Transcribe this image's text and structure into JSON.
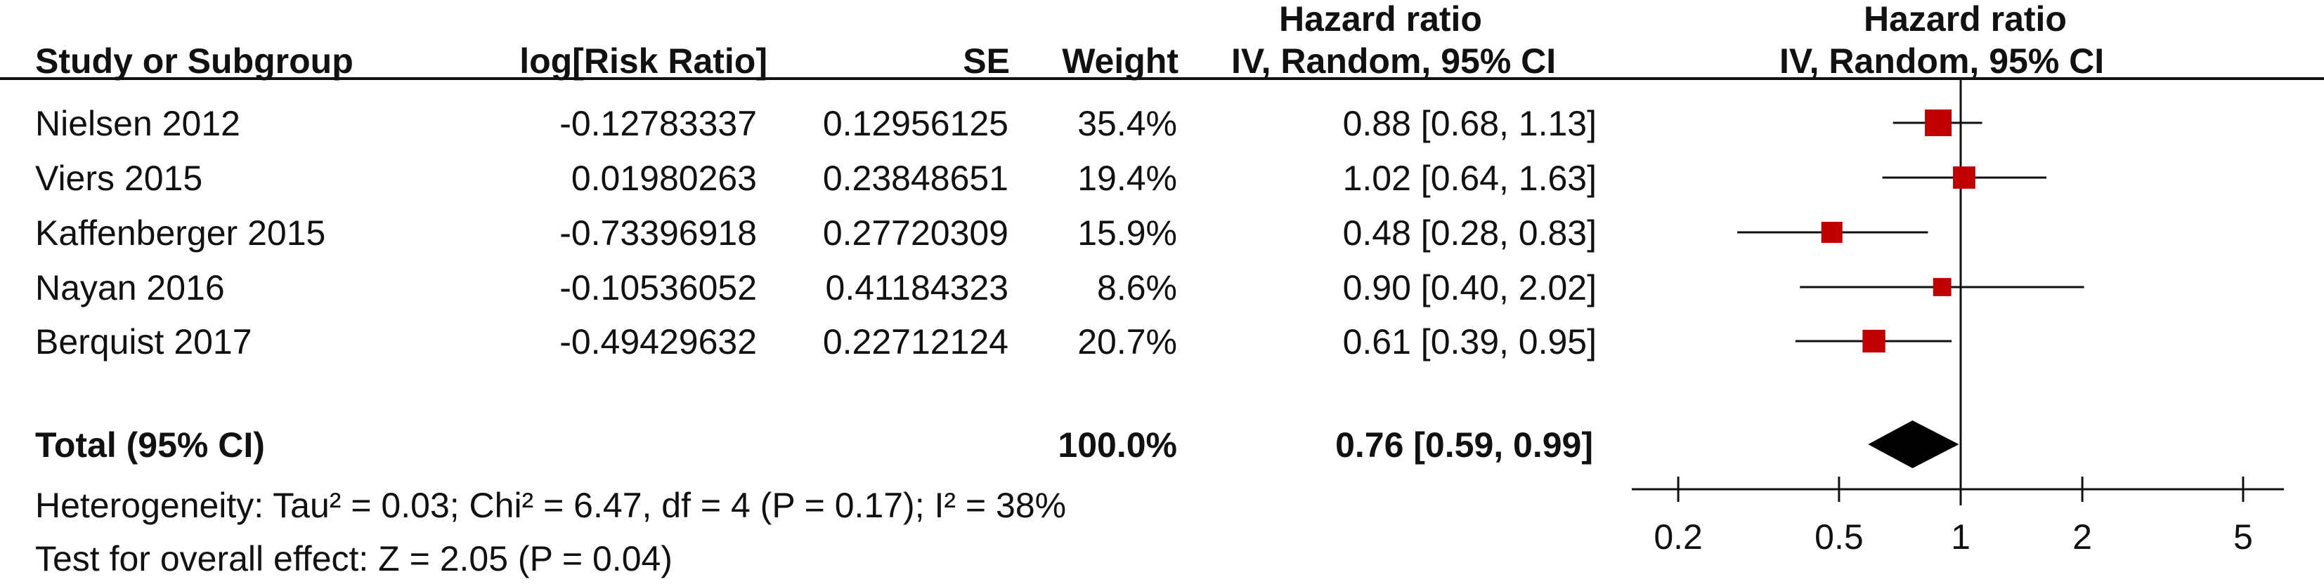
{
  "headers": {
    "study": "Study or Subgroup",
    "log_rr": "log[Risk Ratio]",
    "se": "SE",
    "weight": "Weight",
    "hr_top": "Hazard ratio",
    "hr_sub": "IV, Random, 95% CI",
    "plot_top": "Hazard ratio",
    "plot_sub": "IV, Random, 95% CI"
  },
  "rows": [
    {
      "study": "Nielsen 2012",
      "log_rr": "-0.12783337",
      "se": "0.12956125",
      "weight": "35.4%",
      "ci_text": "0.88 [0.68, 1.13]"
    },
    {
      "study": "Viers 2015",
      "log_rr": "0.01980263",
      "se": "0.23848651",
      "weight": "19.4%",
      "ci_text": "1.02 [0.64, 1.63]"
    },
    {
      "study": "Kaffenberger 2015",
      "log_rr": "-0.73396918",
      "se": "0.27720309",
      "weight": "15.9%",
      "ci_text": "0.48 [0.28, 0.83]"
    },
    {
      "study": "Nayan 2016",
      "log_rr": "-0.10536052",
      "se": "0.41184323",
      "weight": "8.6%",
      "ci_text": "0.90 [0.40, 2.02]"
    },
    {
      "study": "Berquist 2017",
      "log_rr": "-0.49429632",
      "se": "0.22712124",
      "weight": "20.7%",
      "ci_text": "0.61 [0.39, 0.95]"
    }
  ],
  "total": {
    "label": "Total (95% CI)",
    "weight": "100.0%",
    "ci_text": "0.76 [0.59, 0.99]"
  },
  "heterogeneity": "Heterogeneity: Tau² = 0.03; Chi² = 6.47, df = 4 (P = 0.17); I² = 38%",
  "overall_effect": "Test for overall effect: Z = 2.05 (P = 0.04)",
  "chart_data": {
    "type": "scatter",
    "subtype": "forest-plot",
    "title": "Hazard ratio",
    "xlabel": "IV, Random, 95% CI",
    "x_scale": "log",
    "xlim": [
      0.17,
      6.5
    ],
    "null_line": 1,
    "tick_values": [
      0.2,
      0.5,
      1,
      2,
      5
    ],
    "tick_labels": [
      "0.2",
      "0.5",
      "1",
      "2",
      "5"
    ],
    "marker_color": "#c00000",
    "studies": [
      {
        "name": "Nielsen 2012",
        "estimate": 0.88,
        "lower": 0.68,
        "upper": 1.13,
        "weight": 35.4
      },
      {
        "name": "Viers 2015",
        "estimate": 1.02,
        "lower": 0.64,
        "upper": 1.63,
        "weight": 19.4
      },
      {
        "name": "Kaffenberger 2015",
        "estimate": 0.48,
        "lower": 0.28,
        "upper": 0.83,
        "weight": 15.9
      },
      {
        "name": "Nayan 2016",
        "estimate": 0.9,
        "lower": 0.4,
        "upper": 2.02,
        "weight": 8.6
      },
      {
        "name": "Berquist 2017",
        "estimate": 0.61,
        "lower": 0.39,
        "upper": 0.95,
        "weight": 20.7
      }
    ],
    "pooled": {
      "estimate": 0.76,
      "lower": 0.59,
      "upper": 0.99
    }
  }
}
